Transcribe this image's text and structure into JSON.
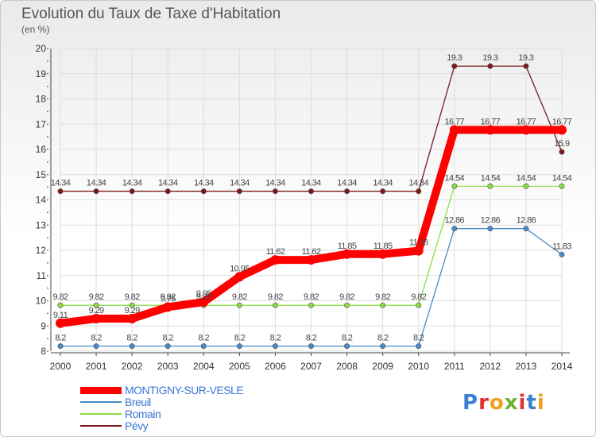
{
  "header": {
    "title": "Evolution du Taux de Taxe d'Habitation",
    "subtitle": "(en %)"
  },
  "logo": {
    "text": "Proxiti"
  },
  "chart_data": {
    "type": "line",
    "title": "Evolution du Taux de Taxe d'Habitation",
    "ylabel": "(en %)",
    "xlabel": "",
    "x": [
      "2000",
      "2001",
      "2002",
      "2003",
      "2004",
      "2005",
      "2006",
      "2007",
      "2008",
      "2009",
      "2010",
      "2011",
      "2012",
      "2013",
      "2014"
    ],
    "ylim": [
      8,
      20
    ],
    "yticks": [
      8,
      9,
      10,
      11,
      12,
      13,
      14,
      15,
      16,
      17,
      18,
      19,
      20
    ],
    "legend_position": "bottom-left",
    "series": [
      {
        "name": "MONTIGNY-SUR-VESLE",
        "color": "#ff0000",
        "values": [
          9.11,
          9.29,
          9.29,
          9.75,
          9.95,
          10.95,
          11.62,
          11.62,
          11.85,
          11.85,
          11.98,
          16.77,
          16.77,
          16.77,
          16.77
        ]
      },
      {
        "name": "Breuil",
        "color": "#4a8ac8",
        "values": [
          8.2,
          8.2,
          8.2,
          8.2,
          8.2,
          8.2,
          8.2,
          8.2,
          8.2,
          8.2,
          8.2,
          12.86,
          12.86,
          12.86,
          11.83
        ]
      },
      {
        "name": "Romain",
        "color": "#88dd44",
        "values": [
          9.82,
          9.82,
          9.82,
          9.82,
          9.82,
          9.82,
          9.82,
          9.82,
          9.82,
          9.82,
          9.82,
          14.54,
          14.54,
          14.54,
          14.54
        ]
      },
      {
        "name": "Pévy",
        "color": "#7a1a1a",
        "values": [
          14.34,
          14.34,
          14.34,
          14.34,
          14.34,
          14.34,
          14.34,
          14.34,
          14.34,
          14.34,
          14.34,
          19.3,
          19.3,
          19.3,
          15.9
        ]
      }
    ],
    "data_labels": [
      [
        "9.11",
        "9.29",
        "9.29",
        "9.75",
        "9.95",
        "10.95",
        "11.62",
        "11.62",
        "11.85",
        "11.85",
        "11.98",
        "16.77",
        "16.77",
        "16.77",
        "16.77"
      ],
      [
        "8.2",
        "8.2",
        "8.2",
        "8.2",
        "8.2",
        "8.2",
        "8.2",
        "8.2",
        "8.2",
        "8.2",
        "8.2",
        "12.86",
        "12.86",
        "12.86",
        "11.83"
      ],
      [
        "9.82",
        "9.82",
        "9.82",
        "9.82",
        "9.82",
        "9.82",
        "9.82",
        "9.82",
        "9.82",
        "9.82",
        "9.82",
        "14.54",
        "14.54",
        "14.54",
        "14.54"
      ],
      [
        "14.34",
        "14.34",
        "14.34",
        "14.34",
        "14.34",
        "14.34",
        "14.34",
        "14.34",
        "14.34",
        "14.34",
        "14.34",
        "19.3",
        "19.3",
        "19.3",
        "15.9"
      ]
    ]
  }
}
